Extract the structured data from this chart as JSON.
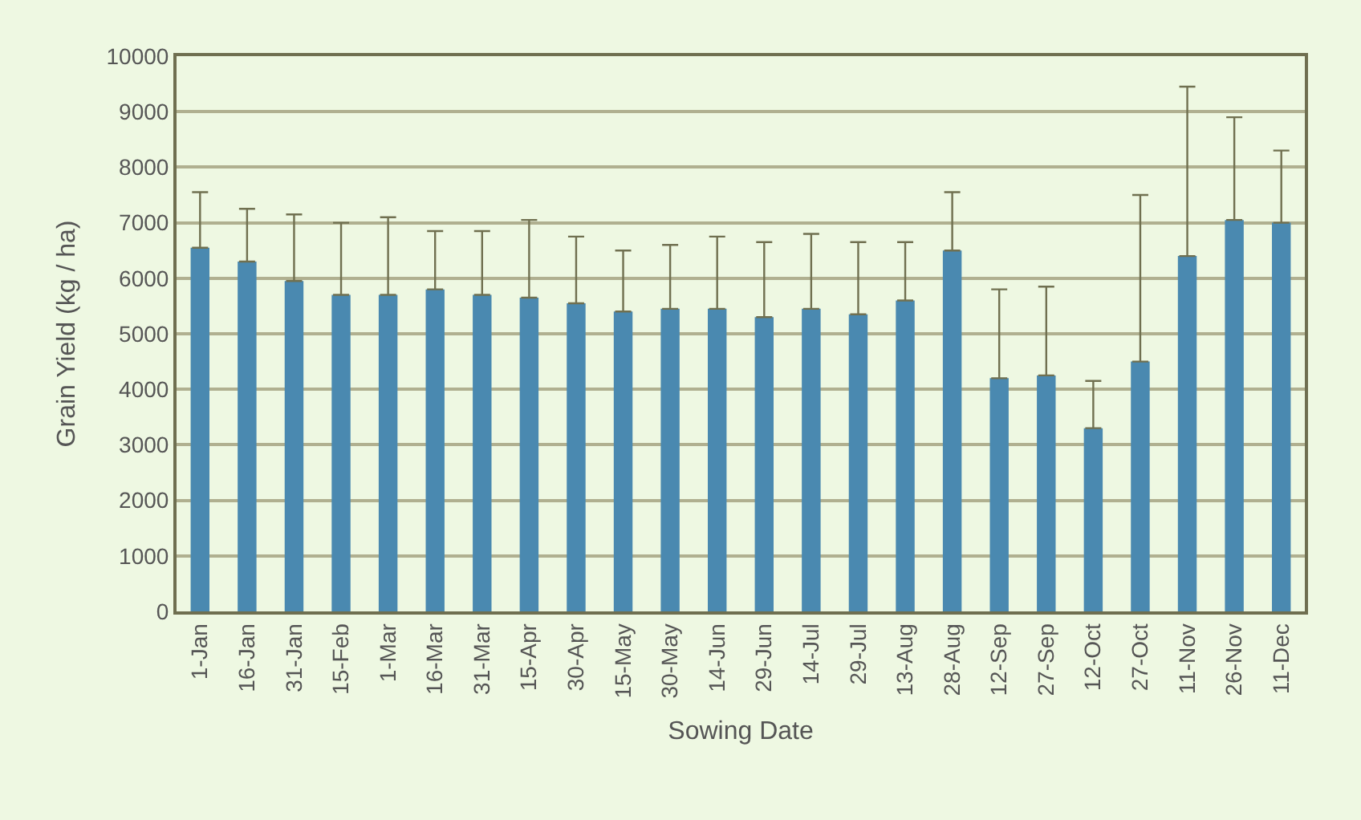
{
  "chart_data": {
    "type": "bar",
    "xlabel": "Sowing Date",
    "ylabel": "Grain Yield (kg / ha)",
    "categories": [
      "1-Jan",
      "16-Jan",
      "31-Jan",
      "15-Feb",
      "1-Mar",
      "16-Mar",
      "31-Mar",
      "15-Apr",
      "30-Apr",
      "15-May",
      "30-May",
      "14-Jun",
      "29-Jun",
      "14-Jul",
      "29-Jul",
      "13-Aug",
      "28-Aug",
      "12-Sep",
      "27-Sep",
      "12-Oct",
      "27-Oct",
      "11-Nov",
      "26-Nov",
      "11-Dec"
    ],
    "values": [
      6550,
      6300,
      5950,
      5700,
      5700,
      5800,
      5700,
      5650,
      5550,
      5400,
      5450,
      5450,
      5300,
      5450,
      5350,
      5600,
      6500,
      4200,
      4250,
      3300,
      4500,
      6400,
      7050,
      7000
    ],
    "errors": [
      [
        6550,
        7550
      ],
      [
        6300,
        7250
      ],
      [
        5950,
        7150
      ],
      [
        5700,
        7000
      ],
      [
        5700,
        7100
      ],
      [
        5800,
        6850
      ],
      [
        5700,
        6850
      ],
      [
        5650,
        7050
      ],
      [
        5550,
        6750
      ],
      [
        5400,
        6500
      ],
      [
        5450,
        6600
      ],
      [
        5450,
        6750
      ],
      [
        5300,
        6650
      ],
      [
        5450,
        6800
      ],
      [
        5350,
        6650
      ],
      [
        5600,
        6650
      ],
      [
        6500,
        7550
      ],
      [
        4200,
        5800
      ],
      [
        4250,
        5850
      ],
      [
        3300,
        4150
      ],
      [
        4500,
        7500
      ],
      [
        6400,
        9450
      ],
      [
        7050,
        8900
      ],
      [
        7000,
        8300
      ]
    ],
    "color": "#4a89b0",
    "ylim": [
      0,
      10000
    ],
    "yticks": [
      0,
      1000,
      2000,
      3000,
      4000,
      5000,
      6000,
      7000,
      8000,
      9000,
      10000
    ],
    "grid": "y"
  }
}
